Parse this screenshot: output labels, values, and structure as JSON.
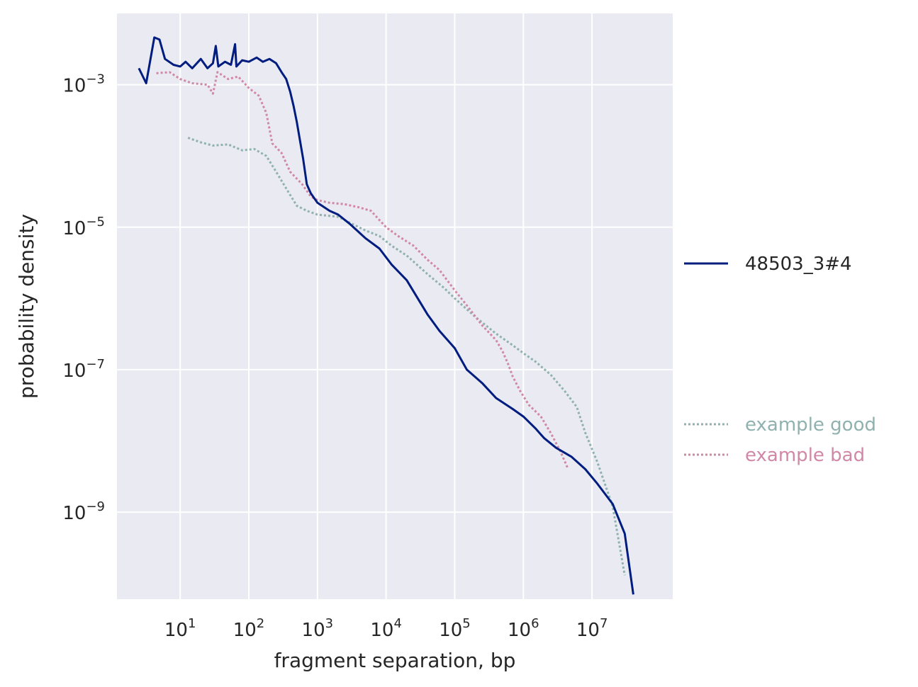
{
  "chart_data": {
    "type": "line",
    "title": "",
    "xlabel": "fragment separation, bp",
    "ylabel": "probability density",
    "x_scale": "log",
    "y_scale": "log",
    "xlim": [
      1.2,
      150000000.0
    ],
    "ylim": [
      6e-11,
      0.01
    ],
    "x_ticks": [
      {
        "base": "10",
        "exp": "1",
        "value": 10
      },
      {
        "base": "10",
        "exp": "2",
        "value": 100
      },
      {
        "base": "10",
        "exp": "3",
        "value": 1000
      },
      {
        "base": "10",
        "exp": "4",
        "value": 10000
      },
      {
        "base": "10",
        "exp": "5",
        "value": 100000
      },
      {
        "base": "10",
        "exp": "6",
        "value": 1000000
      },
      {
        "base": "10",
        "exp": "7",
        "value": 10000000
      }
    ],
    "y_ticks": [
      {
        "base": "10",
        "exp": "−3",
        "value": 0.001
      },
      {
        "base": "10",
        "exp": "−5",
        "value": 1e-05
      },
      {
        "base": "10",
        "exp": "−7",
        "value": 1e-07
      },
      {
        "base": "10",
        "exp": "−9",
        "value": 1e-09
      }
    ],
    "grid": true,
    "background": "#eaeaf2",
    "legend": {
      "placement": "right"
    },
    "series": [
      {
        "name": "48503_3#4",
        "color": "#001c7f",
        "style": "solid",
        "points": [
          [
            2.5,
            0.0017
          ],
          [
            3.2,
            0.00105
          ],
          [
            4.2,
            0.0046
          ],
          [
            5,
            0.0043
          ],
          [
            6,
            0.0023
          ],
          [
            8,
            0.0019
          ],
          [
            10,
            0.0018
          ],
          [
            12,
            0.0021
          ],
          [
            15,
            0.0017
          ],
          [
            20,
            0.0023
          ],
          [
            25,
            0.0017
          ],
          [
            30,
            0.002
          ],
          [
            33,
            0.0035
          ],
          [
            36,
            0.0018
          ],
          [
            45,
            0.0021
          ],
          [
            55,
            0.0019
          ],
          [
            63,
            0.0037
          ],
          [
            66,
            0.0018
          ],
          [
            80,
            0.0022
          ],
          [
            100,
            0.0021
          ],
          [
            130,
            0.0024
          ],
          [
            160,
            0.0021
          ],
          [
            200,
            0.0023
          ],
          [
            250,
            0.002
          ],
          [
            300,
            0.0015
          ],
          [
            350,
            0.0012
          ],
          [
            400,
            0.0008
          ],
          [
            450,
            0.0005
          ],
          [
            500,
            0.0003
          ],
          [
            560,
            0.00016
          ],
          [
            620,
            9e-05
          ],
          [
            700,
            4e-05
          ],
          [
            800,
            3e-05
          ],
          [
            1000,
            2.2e-05
          ],
          [
            1500,
            1.7e-05
          ],
          [
            2000,
            1.5e-05
          ],
          [
            3000,
            1.1e-05
          ],
          [
            5000,
            7e-06
          ],
          [
            8000,
            5e-06
          ],
          [
            12000,
            3e-06
          ],
          [
            20000,
            1.8e-06
          ],
          [
            40000,
            6e-07
          ],
          [
            60000,
            3.5e-07
          ],
          [
            100000,
            2e-07
          ],
          [
            150000,
            1e-07
          ],
          [
            250000,
            6.5e-08
          ],
          [
            400000,
            4e-08
          ],
          [
            700000,
            2.8e-08
          ],
          [
            1000000,
            2.2e-08
          ],
          [
            1500000,
            1.5e-08
          ],
          [
            2000000,
            1.1e-08
          ],
          [
            3000000,
            8e-09
          ],
          [
            5000000,
            6e-09
          ],
          [
            8000000,
            4e-09
          ],
          [
            12000000,
            2.5e-09
          ],
          [
            20000000,
            1.3e-09
          ],
          [
            30000000,
            5e-10
          ],
          [
            40000000,
            7e-11
          ]
        ]
      },
      {
        "name": "example good",
        "color": "#8fb2ae",
        "style": "dotted",
        "points": [
          [
            13,
            0.00018
          ],
          [
            20,
            0.000155
          ],
          [
            30,
            0.00014
          ],
          [
            50,
            0.000145
          ],
          [
            80,
            0.00012
          ],
          [
            120,
            0.000125
          ],
          [
            180,
            0.0001
          ],
          [
            250,
            6e-05
          ],
          [
            350,
            3.5e-05
          ],
          [
            500,
            2e-05
          ],
          [
            700,
            1.7e-05
          ],
          [
            1000,
            1.5e-05
          ],
          [
            2000,
            1.4e-05
          ],
          [
            3000,
            1.15e-05
          ],
          [
            5000,
            9e-06
          ],
          [
            8000,
            7.5e-06
          ],
          [
            12000,
            5.5e-06
          ],
          [
            20000,
            4e-06
          ],
          [
            40000,
            2.2e-06
          ],
          [
            70000,
            1.4e-06
          ],
          [
            100000,
            1e-06
          ],
          [
            200000,
            5.5e-07
          ],
          [
            400000,
            3.2e-07
          ],
          [
            700000,
            2.2e-07
          ],
          [
            1000000,
            1.7e-07
          ],
          [
            1500000,
            1.3e-07
          ],
          [
            2500000,
            8.5e-08
          ],
          [
            4000000,
            5e-08
          ],
          [
            6000000,
            3e-08
          ],
          [
            8000000,
            1.3e-08
          ],
          [
            12000000,
            5e-09
          ],
          [
            20000000,
            1.2e-09
          ],
          [
            30000000,
            1.3e-10
          ]
        ]
      },
      {
        "name": "example bad",
        "color": "#d188a6",
        "style": "dotted",
        "points": [
          [
            4.5,
            0.00145
          ],
          [
            7,
            0.0015
          ],
          [
            10,
            0.0012
          ],
          [
            15,
            0.00105
          ],
          [
            25,
            0.001
          ],
          [
            30,
            0.00075
          ],
          [
            35,
            0.0015
          ],
          [
            50,
            0.0012
          ],
          [
            70,
            0.0013
          ],
          [
            100,
            0.0009
          ],
          [
            140,
            0.0007
          ],
          [
            180,
            0.0004
          ],
          [
            220,
            0.00015
          ],
          [
            300,
            0.00011
          ],
          [
            400,
            6e-05
          ],
          [
            600,
            4e-05
          ],
          [
            800,
            2.7e-05
          ],
          [
            1000,
            2.4e-05
          ],
          [
            1500,
            2.2e-05
          ],
          [
            2500,
            2.1e-05
          ],
          [
            4000,
            1.9e-05
          ],
          [
            6000,
            1.7e-05
          ],
          [
            10000,
            1e-05
          ],
          [
            15000,
            7.5e-06
          ],
          [
            25000,
            5.5e-06
          ],
          [
            40000,
            3.5e-06
          ],
          [
            60000,
            2.5e-06
          ],
          [
            100000,
            1.3e-06
          ],
          [
            150000,
            8e-07
          ],
          [
            250000,
            4.2e-07
          ],
          [
            400000,
            2.6e-07
          ],
          [
            500000,
            1.8e-07
          ],
          [
            600000,
            1.2e-07
          ],
          [
            700000,
            8e-08
          ],
          [
            900000,
            5e-08
          ],
          [
            1200000,
            3.2e-08
          ],
          [
            1800000,
            2.2e-08
          ],
          [
            2500000,
            1.3e-08
          ],
          [
            3500000,
            7e-09
          ],
          [
            4500000,
            4e-09
          ]
        ]
      }
    ]
  }
}
